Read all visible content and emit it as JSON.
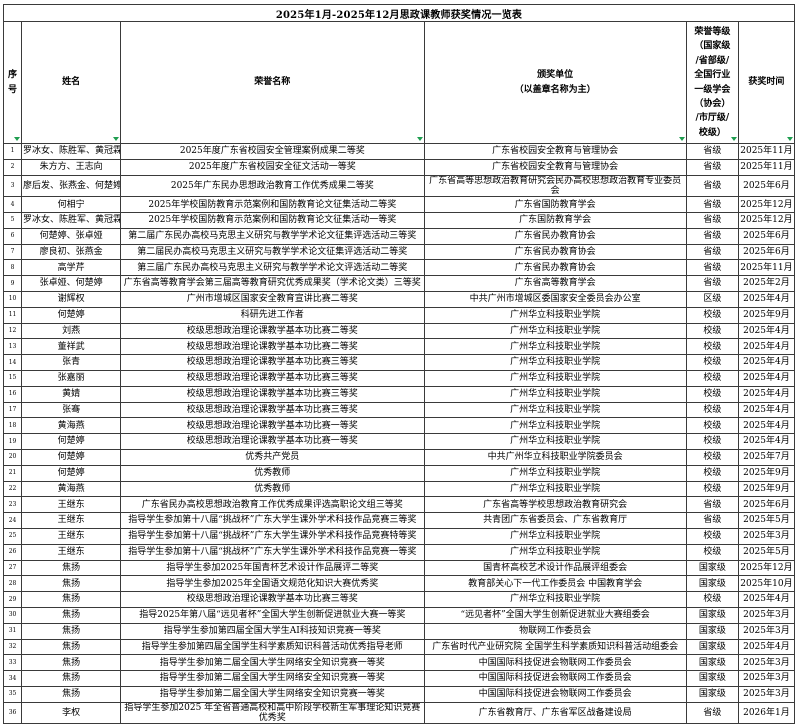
{
  "title": "2025年1月-2025年12月思政课教师获奖情况一览表",
  "filter_icon_color": "#1f9d4f",
  "columns": [
    {
      "label": "序号"
    },
    {
      "label": "姓名"
    },
    {
      "label": "荣誉名称"
    },
    {
      "label": "颁奖单位\n（以盖章名称为主）"
    },
    {
      "label": "荣誉等级\n（国家级\n/省部级/\n全国行业\n一级学会\n（协会）\n/市厅级/\n校级）"
    },
    {
      "label": "获奖时间"
    }
  ],
  "rows": [
    {
      "no": "1",
      "name": "罗冰女、陈胜军、黄冠霖",
      "honor": "2025年度广东省校园安全管理案例成果二等奖",
      "unit": "广东省校园安全教育与管理协会",
      "level": "省级",
      "date": "2025年11月"
    },
    {
      "no": "2",
      "name": "朱方方、王志向",
      "honor": "2025年度广东省校园安全征文活动一等奖",
      "unit": "广东省校园安全教育与管理协会",
      "level": "省级",
      "date": "2025年11月"
    },
    {
      "no": "3",
      "name": "廖后发、张燕金、何楚婷",
      "honor": "2025年广东民办思想政治教育工作优秀成果二等奖",
      "unit": "广东省高等思想政治教育研究会民办高校思想政治教育专业委员会",
      "level": "省级",
      "date": "2025年6月"
    },
    {
      "no": "4",
      "name": "何相宁",
      "honor": "2025年学校国防教育示范案例和国防教育论文征集活动二等奖",
      "unit": "广东省国防教育学会",
      "level": "省级",
      "date": "2025年12月"
    },
    {
      "no": "5",
      "name": "罗冰女、陈胜军、黄冠霖",
      "honor": "2025年学校国防教育示范案例和国防教育论文征集活动一等奖",
      "unit": "广东国防教育学会",
      "level": "省级",
      "date": "2025年12月"
    },
    {
      "no": "6",
      "name": "何楚婷、张卓娅",
      "honor": "第二届广东民办高校马克思主义研究与教学学术论文征集评选活动三等奖",
      "unit": "广东省民办教育协会",
      "level": "省级",
      "date": "2025年6月"
    },
    {
      "no": "7",
      "name": "廖良初、张燕金",
      "honor": "第二届民办高校马克思主义研究与教学学术论文征集评选活动二等奖",
      "unit": "广东省民办教育协会",
      "level": "省级",
      "date": "2025年6月"
    },
    {
      "no": "8",
      "name": "高学芹",
      "honor": "第三届广东民办高校马克思主义研究与教学学术论文评选活动二等奖",
      "unit": "广东省民办教育协会",
      "level": "省级",
      "date": "2025年11月"
    },
    {
      "no": "9",
      "name": "张卓娅、何楚婷",
      "honor": "广东省高等教育学会第三届高等教育研究优秀成果奖（学术论文类）三等奖",
      "unit": "广东省高等教育学会",
      "level": "省级",
      "date": "2025年2月"
    },
    {
      "no": "10",
      "name": "谢辉权",
      "honor": "广州市增城区国家安全教育宣讲比赛二等奖",
      "unit": "中共广州市增城区委国家安全委员会办公室",
      "level": "区级",
      "date": "2025年4月"
    },
    {
      "no": "11",
      "name": "何楚婷",
      "honor": "科研先进工作者",
      "unit": "广州华立科技职业学院",
      "level": "校级",
      "date": "2025年9月"
    },
    {
      "no": "12",
      "name": "刘燕",
      "honor": "校级思想政治理论课教学基本功比赛二等奖",
      "unit": "广州华立科技职业学院",
      "level": "校级",
      "date": "2025年4月"
    },
    {
      "no": "13",
      "name": "董祥武",
      "honor": "校级思想政治理论课教学基本功比赛二等奖",
      "unit": "广州华立科技职业学院",
      "level": "校级",
      "date": "2025年4月"
    },
    {
      "no": "14",
      "name": "张青",
      "honor": "校级思想政治理论课教学基本功比赛三等奖",
      "unit": "广州华立科技职业学院",
      "level": "校级",
      "date": "2025年4月"
    },
    {
      "no": "15",
      "name": "张嘉丽",
      "honor": "校级思想政治理论课教学基本功比赛三等奖",
      "unit": "广州华立科技职业学院",
      "level": "校级",
      "date": "2025年4月"
    },
    {
      "no": "16",
      "name": "黄婧",
      "honor": "校级思想政治理论课教学基本功比赛三等奖",
      "unit": "广州华立科技职业学院",
      "level": "校级",
      "date": "2025年4月"
    },
    {
      "no": "17",
      "name": "张骞",
      "honor": "校级思想政治理论课教学基本功比赛三等奖",
      "unit": "广州华立科技职业学院",
      "level": "校级",
      "date": "2025年4月"
    },
    {
      "no": "18",
      "name": "黄海燕",
      "honor": "校级思想政治理论课教学基本功比赛一等奖",
      "unit": "广州华立科技职业学院",
      "level": "校级",
      "date": "2025年4月"
    },
    {
      "no": "19",
      "name": "何楚婷",
      "honor": "校级思想政治理论课教学基本功比赛一等奖",
      "unit": "广州华立科技职业学院",
      "level": "校级",
      "date": "2025年4月"
    },
    {
      "no": "20",
      "name": "何楚婷",
      "honor": "优秀共产党员",
      "unit": "中共广州华立科技职业学院委员会",
      "level": "校级",
      "date": "2025年7月"
    },
    {
      "no": "21",
      "name": "何楚婷",
      "honor": "优秀教师",
      "unit": "广州华立科技职业学院",
      "level": "校级",
      "date": "2025年9月"
    },
    {
      "no": "22",
      "name": "黄海燕",
      "honor": "优秀教师",
      "unit": "广州华立科技职业学院",
      "level": "校级",
      "date": "2025年9月"
    },
    {
      "no": "23",
      "name": "王继东",
      "honor": "广东省民办高校思想政治教育工作优秀成果评选高职论文组三等奖",
      "unit": "广东省高等学校思想政治教育研究会",
      "level": "省级",
      "date": "2025年6月"
    },
    {
      "no": "24",
      "name": "王继东",
      "honor": "指导学生参加第十八届“挑战杯”广东大学生课外学术科技作品竞赛三等奖",
      "unit": "共青团广东省委员会、广东省教育厅",
      "level": "省级",
      "date": "2025年5月"
    },
    {
      "no": "25",
      "name": "王继东",
      "honor": "指导学生参加第十八届“挑战杯”广东大学生课外学术科技作品竞赛特等奖",
      "unit": "广州华立科技职业学院",
      "level": "校级",
      "date": "2025年3月"
    },
    {
      "no": "26",
      "name": "王继东",
      "honor": "指导学生参加第十八届“挑战杯”广东大学生课外学术科技作品竞赛一等奖",
      "unit": "广州华立科技职业学院",
      "level": "校级",
      "date": "2025年5月"
    },
    {
      "no": "27",
      "name": "焦扬",
      "honor": "指导学生参加2025年国青杯艺术设计作品展评二等奖",
      "unit": "国青杯高校艺术设计作品展评组委会",
      "level": "国家级",
      "date": "2025年12月"
    },
    {
      "no": "28",
      "name": "焦扬",
      "honor": "指导学生参加2025年全国语文规范化知识大赛优秀奖",
      "unit": "教育部关心下一代工作委员会 中国教育学会",
      "level": "国家级",
      "date": "2025年10月"
    },
    {
      "no": "29",
      "name": "焦扬",
      "honor": "校级思想政治理论课教学基本功比赛三等奖",
      "unit": "广州华立科技职业学院",
      "level": "校级",
      "date": "2025年4月"
    },
    {
      "no": "30",
      "name": "焦扬",
      "honor": "指导2025年第八届“远见者杯”全国大学生创新促进就业大赛一等奖",
      "unit": "“远见者杯”全国大学生创新促进就业大赛组委会",
      "level": "国家级",
      "date": "2025年3月"
    },
    {
      "no": "31",
      "name": "焦扬",
      "honor": "指导学生参加第四届全国大学生AI科技知识竞赛一等奖",
      "unit": "物联网工作委员会",
      "level": "国家级",
      "date": "2025年3月"
    },
    {
      "no": "32",
      "name": "焦扬",
      "honor": "指导学生参加第四届全国学生科学素质知识科普活动优秀指导老师",
      "unit": "广东省时代产业研究院 全国学生科学素质知识科普活动组委会",
      "level": "国家级",
      "date": "2025年4月"
    },
    {
      "no": "33",
      "name": "焦扬",
      "honor": "指导学生参加第二届全国大学生网络安全知识竞赛一等奖",
      "unit": "中国国际科技促进会物联网工作委员会",
      "level": "国家级",
      "date": "2025年3月"
    },
    {
      "no": "34",
      "name": "焦扬",
      "honor": "指导学生参加第二届全国大学生网络安全知识竞赛一等奖",
      "unit": "中国国际科技促进会物联网工作委员会",
      "level": "国家级",
      "date": "2025年3月"
    },
    {
      "no": "35",
      "name": "焦扬",
      "honor": "指导学生参加第二届全国大学生网络安全知识竞赛一等奖",
      "unit": "中国国际科技促进会物联网工作委员会",
      "level": "国家级",
      "date": "2025年3月"
    },
    {
      "no": "36",
      "name": "李权",
      "honor": "指导学生参加2025 年全省普通高校和高中阶段学校新生军事理论知识竞赛优秀奖",
      "unit": "广东省教育厅、广东省军区战备建设局",
      "level": "省级",
      "date": "2026年1月"
    }
  ]
}
